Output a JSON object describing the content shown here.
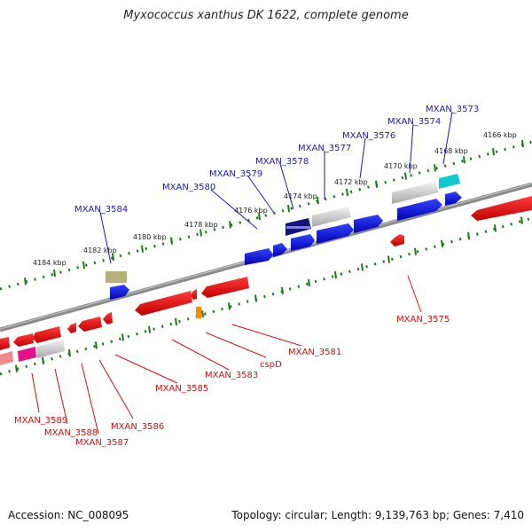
{
  "title": "Myxococcus xanthus DK 1622, complete genome",
  "footer": {
    "accession": "Accession: NC_008095",
    "stats": "Topology: circular; Length: 9,139,763 bp; Genes: 7,410"
  },
  "colors": {
    "forward_gene": "#0a14e6",
    "reverse_gene": "#e60a0a",
    "label_forward": "#1a1ab0",
    "label_reverse": "#cc1111",
    "ruler_tick": "#1a7a1a",
    "backbone": "#808080"
  },
  "kbp_ticks": [
    "4184 kbp",
    "4182 kbp",
    "4180 kbp",
    "4178 kbp",
    "4176 kbp",
    "4174 kbp",
    "4172 kbp",
    "4170 kbp",
    "4168 kbp",
    "4166 kbp"
  ],
  "gene_labels": {
    "forward": [
      "MXAN_3584",
      "MXAN_3580",
      "MXAN_3579",
      "MXAN_3578",
      "MXAN_3577",
      "MXAN_3576",
      "MXAN_3574",
      "MXAN_3573"
    ],
    "reverse": [
      "MXAN_3575",
      "MXAN_3581",
      "cspD",
      "MXAN_3583",
      "MXAN_3585",
      "MXAN_3586",
      "MXAN_3587",
      "MXAN_3588",
      "MXAN_3589"
    ]
  }
}
